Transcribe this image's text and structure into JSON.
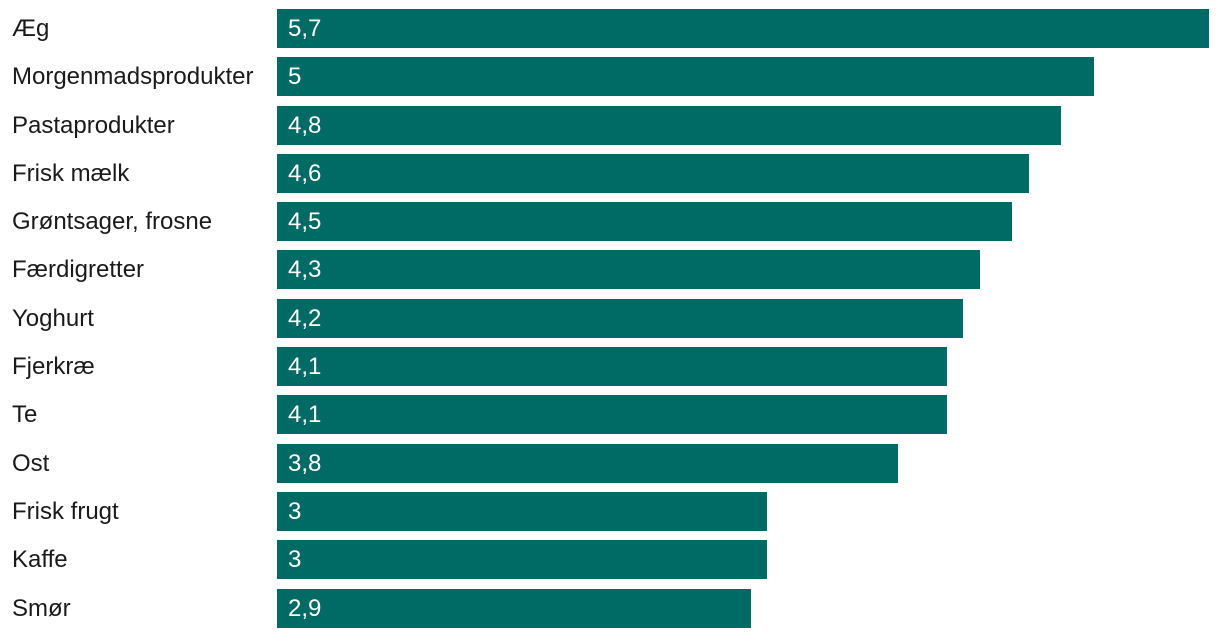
{
  "chart_data": {
    "type": "bar",
    "orientation": "horizontal",
    "title": "",
    "xlabel": "",
    "ylabel": "",
    "categories": [
      "Æg",
      "Morgenmadsprodukter",
      "Pastaprodukter",
      "Frisk mælk",
      "Grøntsager, frosne",
      "Færdigretter",
      "Yoghurt",
      "Fjerkræ",
      "Te",
      "Ost",
      "Frisk frugt",
      "Kaffe",
      "Smør"
    ],
    "values": [
      5.7,
      5,
      4.8,
      4.6,
      4.5,
      4.3,
      4.2,
      4.1,
      4.1,
      3.8,
      3,
      3,
      2.9
    ],
    "value_labels": [
      "5,7",
      "5",
      "4,8",
      "4,6",
      "4,5",
      "4,3",
      "4,2",
      "4,1",
      "4,1",
      "3,8",
      "3",
      "3",
      "2,9"
    ],
    "value_label_position": "inside-start",
    "xlim": [
      0,
      5.77
    ],
    "grid": false,
    "legend": false,
    "axes_visible": false,
    "bar_color": "#006A64",
    "category_text_color": "#1A1A1A",
    "value_text_color": "#FFFFFF",
    "background_color": "#FFFFFF"
  }
}
